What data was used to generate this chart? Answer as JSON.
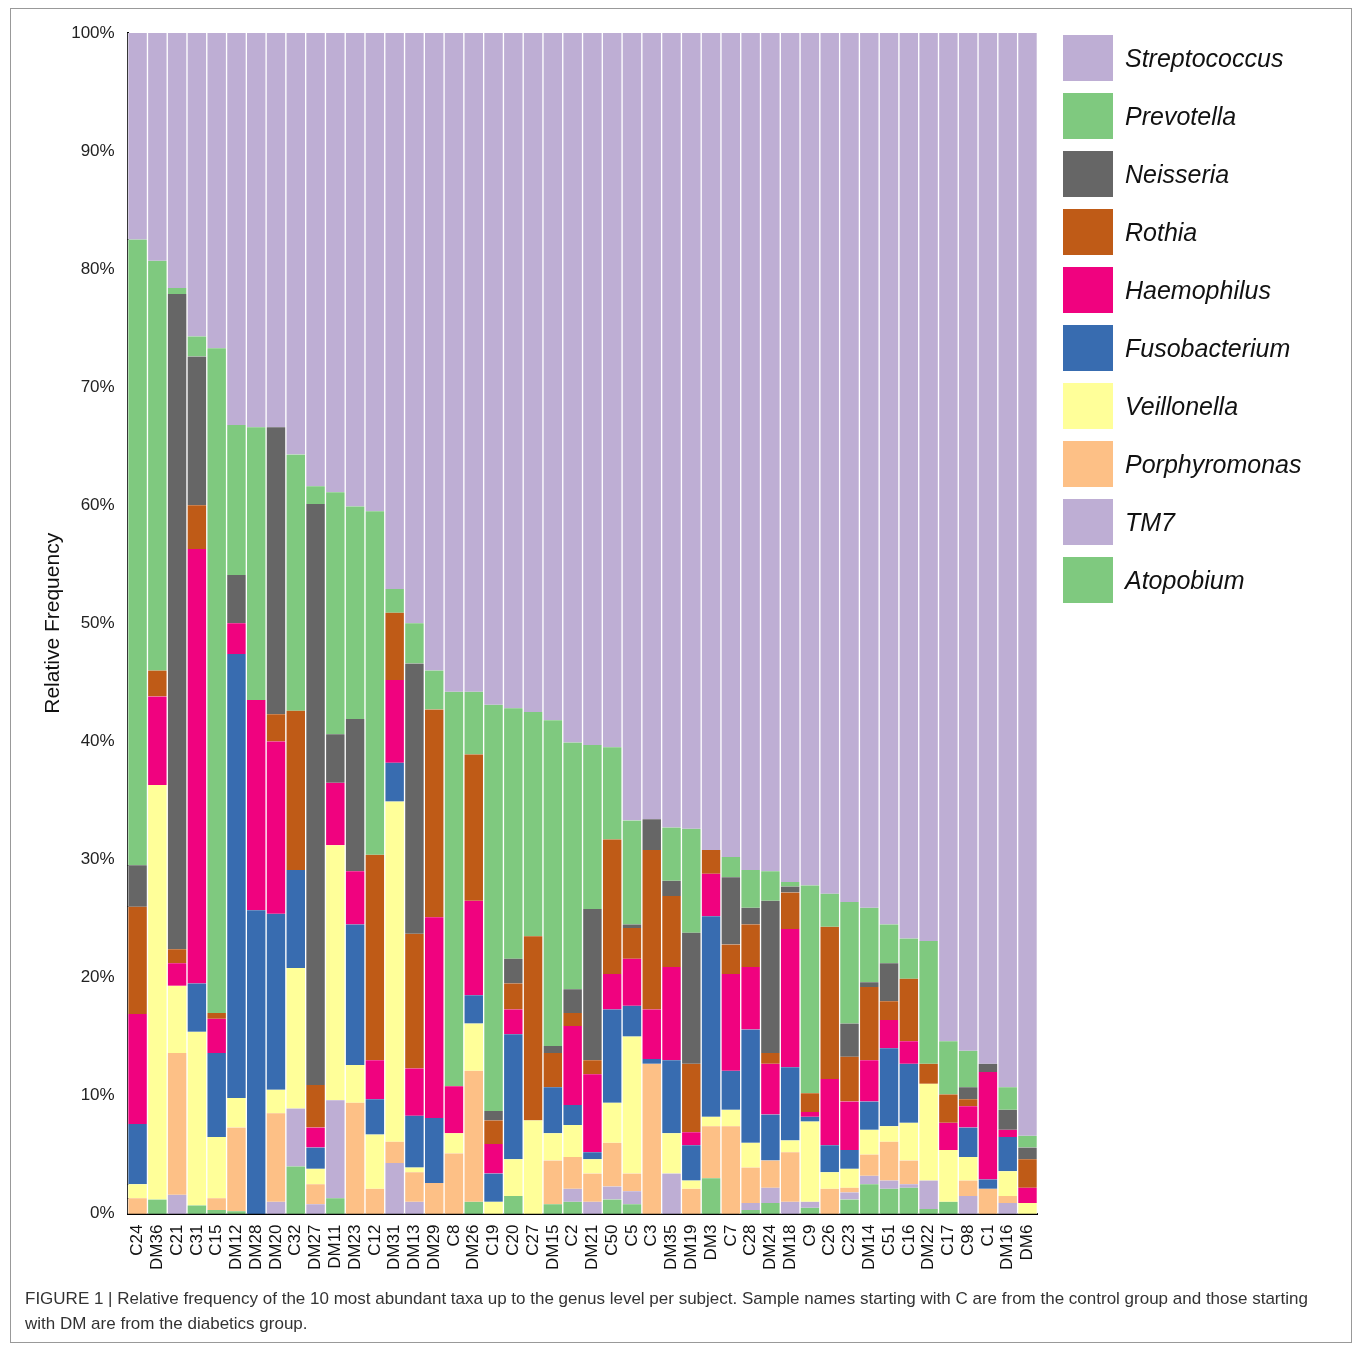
{
  "chart_data": {
    "type": "bar",
    "stacked": true,
    "ylabel": "Relative Frequency",
    "categories": [
      "C24",
      "DM36",
      "C21",
      "C31",
      "C15",
      "DM12",
      "DM28",
      "DM20",
      "C32",
      "DM27",
      "DM11",
      "DM23",
      "C12",
      "DM31",
      "DM13",
      "DM29",
      "C8",
      "DM26",
      "C19",
      "C20",
      "C27",
      "DM15",
      "C2",
      "DM21",
      "C50",
      "C5",
      "C3",
      "DM35",
      "DM19",
      "DM3",
      "C7",
      "C28",
      "DM24",
      "DM18",
      "C9",
      "C26",
      "C23",
      "DM14",
      "C51",
      "C16",
      "DM22",
      "C17",
      "C98",
      "C1",
      "DM16",
      "DM6"
    ],
    "series": [
      {
        "name": "Atopobium",
        "color": "#7fc97f",
        "values": [
          0,
          1.2,
          0,
          0.7,
          0.3,
          0.2,
          0,
          0,
          4,
          0,
          1.3,
          0,
          0,
          0,
          0,
          0,
          0,
          1,
          0,
          1.5,
          0,
          0.8,
          1,
          0,
          1.2,
          0.8,
          0,
          0,
          0,
          3,
          0,
          0.3,
          0.9,
          0,
          0.5,
          0,
          1.2,
          2.5,
          2.1,
          2.2,
          0.4,
          1,
          0,
          0,
          0,
          0
        ]
      },
      {
        "name": "TM7",
        "color": "#beaed4",
        "values": [
          0,
          0,
          1.6,
          0,
          0,
          0,
          0,
          1,
          4.9,
          0.8,
          8.3,
          0,
          0,
          4.3,
          1,
          0,
          0,
          0,
          0,
          0,
          0,
          0,
          1.1,
          1,
          1.1,
          1.1,
          0,
          3.4,
          0,
          0,
          0,
          0.6,
          1.3,
          1,
          0.5,
          0,
          0.6,
          0.7,
          0.7,
          0.3,
          2.4,
          0,
          1.5,
          0,
          0.9,
          0
        ]
      },
      {
        "name": "Porphyromonas",
        "color": "#fdc086",
        "values": [
          1.3,
          0,
          12,
          0,
          1,
          7.1,
          0,
          7.5,
          0,
          1.7,
          0,
          9.4,
          2.1,
          1.8,
          2.5,
          2.6,
          5.1,
          11.1,
          0,
          0,
          0,
          3.7,
          2.7,
          2.4,
          3.7,
          1.5,
          12.7,
          0,
          2.1,
          4.4,
          7.4,
          3,
          2.3,
          4.2,
          0,
          2.1,
          0.4,
          1.8,
          3.3,
          2,
          0,
          0,
          1.3,
          2.1,
          0.6,
          0
        ]
      },
      {
        "name": "Veillonella",
        "color": "#ffff99",
        "values": [
          1.2,
          35.1,
          5.7,
          14.7,
          5.2,
          2.5,
          0,
          2,
          11.9,
          1.3,
          21.6,
          3.2,
          4.6,
          28.8,
          0.4,
          0,
          1.7,
          4,
          1,
          3.1,
          7.9,
          2.3,
          2.7,
          1.2,
          3.4,
          11.6,
          0,
          3.4,
          0.7,
          0.8,
          1.4,
          2.1,
          0,
          1,
          6.8,
          1.4,
          1.6,
          2.1,
          1.3,
          3.2,
          8.2,
          4.4,
          2,
          0,
          2.1,
          0.9
        ]
      },
      {
        "name": "Fusobacterium",
        "color": "#386cb0",
        "values": [
          5.1,
          0,
          0,
          4.1,
          7.1,
          37.6,
          25.7,
          14.9,
          8.3,
          1.8,
          0,
          11.9,
          3,
          3.3,
          4.4,
          5.5,
          0,
          2.4,
          2.4,
          10.6,
          0,
          3.9,
          1.7,
          0.6,
          7.9,
          2.6,
          0.4,
          6.2,
          3,
          17,
          3.3,
          9.6,
          3.9,
          6.2,
          0.4,
          2.3,
          1.6,
          2.4,
          6.6,
          5,
          0,
          0,
          2.5,
          0.8,
          2.9,
          0
        ]
      },
      {
        "name": "Haemophilus",
        "color": "#f0027f",
        "values": [
          9.3,
          7.5,
          1.9,
          36.8,
          2.9,
          2.6,
          17.8,
          14.6,
          0,
          1.7,
          5.3,
          4.5,
          3.3,
          7,
          4,
          17,
          4,
          8,
          2.5,
          2.1,
          0,
          0,
          6.7,
          6.6,
          3,
          4,
          4.2,
          7.9,
          1.1,
          3.6,
          8.2,
          5.3,
          4.3,
          11.7,
          0.4,
          5.6,
          4.1,
          3.5,
          2.4,
          1.9,
          0,
          2.3,
          1.8,
          9.1,
          0.6,
          1.3
        ]
      },
      {
        "name": "Rothia",
        "color": "#bf5b17",
        "values": [
          9.1,
          2.2,
          1.2,
          3.7,
          0.5,
          0,
          0,
          2.3,
          13.5,
          3.6,
          0,
          0,
          17.4,
          5.7,
          11.4,
          17.6,
          0,
          12.4,
          2,
          2.2,
          15.6,
          2.9,
          1.1,
          1.2,
          11.4,
          2.6,
          13.5,
          6,
          5.8,
          2,
          2.5,
          3.6,
          0.9,
          3.1,
          1.6,
          12.9,
          3.8,
          6.2,
          1.6,
          5.3,
          1.7,
          2.4,
          0.6,
          0,
          0,
          2.4
        ]
      },
      {
        "name": "Neisseria",
        "color": "#666666",
        "values": [
          3.5,
          0,
          55.5,
          12.6,
          0,
          4.1,
          0,
          24.3,
          0,
          49.2,
          4.1,
          12.9,
          0,
          0,
          22.9,
          0,
          0,
          0,
          0.8,
          2.1,
          0,
          0.6,
          2,
          12.8,
          0,
          0.3,
          2.6,
          1.3,
          11.1,
          0,
          5.7,
          1.4,
          12.9,
          0.5,
          0,
          0,
          2.8,
          0.4,
          3.2,
          0,
          0,
          0,
          1,
          0.7,
          1.7,
          1
        ]
      },
      {
        "name": "Prevotella",
        "color": "#7fc97f",
        "values": [
          53,
          34.7,
          0.5,
          1.7,
          56.3,
          12.7,
          23.1,
          0,
          21.7,
          1.5,
          20.5,
          18,
          29.1,
          2,
          3.4,
          3.3,
          33.4,
          5.3,
          34.4,
          21.2,
          19,
          27.6,
          20.9,
          13.9,
          7.8,
          8.8,
          0,
          4.5,
          8.8,
          0,
          1.7,
          3.2,
          2.5,
          0.4,
          17.6,
          2.8,
          10.3,
          6.3,
          3.3,
          3.4,
          10.4,
          4.5,
          3.1,
          0,
          1.9,
          1
        ]
      },
      {
        "name": "Streptococcus",
        "color": "#beaed4",
        "values": [
          17.5,
          19.3,
          21.6,
          25.7,
          26.7,
          33.2,
          33.4,
          33.4,
          35.7,
          38.4,
          38.9,
          40.1,
          40.5,
          47.1,
          50,
          54,
          55.8,
          55.8,
          56.9,
          57.2,
          57.5,
          58.2,
          60.1,
          60.3,
          60.5,
          66.7,
          66.6,
          67.3,
          67.4,
          69.2,
          69.8,
          70.9,
          71,
          71.9,
          72.2,
          72.9,
          73.6,
          74.1,
          75.5,
          76.7,
          76.9,
          85.4,
          86.2,
          87.3,
          89.3,
          93.4
        ]
      }
    ],
    "ylim": [
      0,
      100
    ],
    "yticks": [
      {
        "value": 0,
        "label": "0%"
      },
      {
        "value": 10,
        "label": "10%"
      },
      {
        "value": 20,
        "label": "20%"
      },
      {
        "value": 30,
        "label": "30%"
      },
      {
        "value": 40,
        "label": "40%"
      },
      {
        "value": 50,
        "label": "50%"
      },
      {
        "value": 60,
        "label": "60%"
      },
      {
        "value": 70,
        "label": "70%"
      },
      {
        "value": 80,
        "label": "80%"
      },
      {
        "value": 90,
        "label": "90%"
      },
      {
        "value": 100,
        "label": "100%"
      }
    ],
    "legend": "right",
    "annotations": [
      "FIGURE 1 | Relative frequency of the 10 most abundant taxa up to the genus level per subject. Sample names starting with C are from the control group and those starting with DM are from the diabetics group."
    ]
  }
}
